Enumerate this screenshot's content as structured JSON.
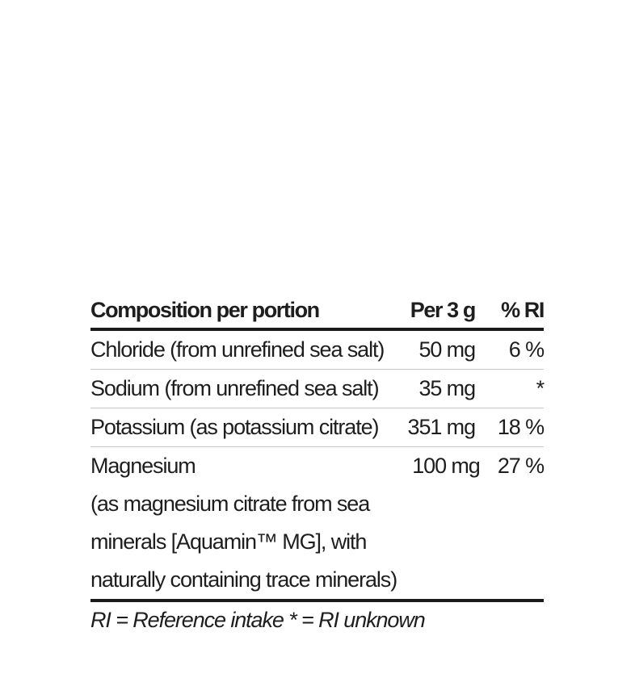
{
  "table": {
    "headers": [
      "Composition per portion",
      "Per 3 g",
      "% RI"
    ],
    "rows": [
      {
        "name": "Chloride (from unrefined sea salt)",
        "per": "50 mg",
        "ri": "6 %"
      },
      {
        "name": "Sodium (from unrefined sea salt)",
        "per": "35 mg",
        "ri": "*"
      },
      {
        "name": "Potassium (as potassium citrate)",
        "per": "351 mg",
        "ri": "18 %"
      },
      {
        "name": "Magnesium",
        "name_lines": [
          "(as magnesium citrate from sea",
          "minerals [Aquamin™ MG], with",
          "naturally containing trace minerals)"
        ],
        "per": "100 mg",
        "ri": "27 %"
      }
    ],
    "footnote": "RI = Reference intake * = RI unknown"
  }
}
